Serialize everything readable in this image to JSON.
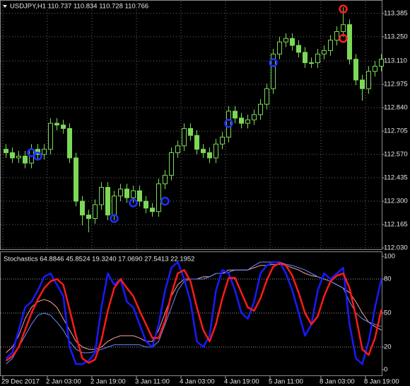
{
  "chart_data": [
    {
      "type": "candlestick",
      "title": "USDJPY,H1  110.737 110.834 110.728 110.766",
      "color": "#7cd957",
      "open": [
        112.6,
        112.58,
        112.55,
        112.56,
        112.52,
        112.6,
        112.57,
        112.6,
        112.75,
        112.74,
        112.72,
        112.55,
        112.3,
        112.22,
        112.2,
        112.28,
        112.38,
        112.22,
        112.33,
        112.37,
        112.32,
        112.36,
        112.3,
        112.26,
        112.24,
        112.4,
        112.45,
        112.58,
        112.62,
        112.72,
        112.68,
        112.6,
        112.58,
        112.55,
        112.63,
        112.67,
        112.82,
        112.78,
        112.75,
        112.77,
        112.8,
        112.86,
        112.95,
        113.15,
        113.22,
        113.24,
        113.2,
        113.16,
        113.1,
        113.1,
        113.15,
        113.17,
        113.23,
        113.28,
        113.32,
        113.12,
        113.0,
        112.95,
        113.05,
        113.08
      ],
      "high": [
        112.63,
        112.61,
        112.59,
        112.59,
        112.63,
        112.63,
        112.63,
        112.78,
        112.78,
        112.77,
        112.75,
        112.58,
        112.33,
        112.25,
        112.31,
        112.41,
        112.41,
        112.36,
        112.4,
        112.4,
        112.39,
        112.39,
        112.33,
        112.29,
        112.43,
        112.48,
        112.61,
        112.65,
        112.75,
        112.75,
        112.71,
        112.63,
        112.61,
        112.66,
        112.7,
        112.85,
        112.85,
        112.81,
        112.8,
        112.83,
        112.89,
        112.98,
        113.18,
        113.25,
        113.27,
        113.27,
        113.23,
        113.19,
        113.13,
        113.18,
        113.2,
        113.26,
        113.31,
        113.42,
        113.35,
        113.15,
        113.03,
        113.08,
        113.11,
        113.15
      ],
      "low": [
        112.55,
        112.52,
        112.52,
        112.49,
        112.49,
        112.54,
        112.54,
        112.57,
        112.71,
        112.69,
        112.52,
        112.27,
        112.16,
        112.12,
        112.17,
        112.25,
        112.19,
        112.19,
        112.3,
        112.29,
        112.29,
        112.27,
        112.23,
        112.21,
        112.21,
        112.37,
        112.42,
        112.55,
        112.59,
        112.65,
        112.57,
        112.55,
        112.52,
        112.52,
        112.6,
        112.64,
        112.75,
        112.72,
        112.72,
        112.74,
        112.77,
        112.83,
        112.92,
        113.12,
        113.19,
        113.17,
        113.13,
        113.07,
        113.07,
        113.07,
        113.12,
        113.14,
        113.2,
        113.25,
        113.09,
        112.97,
        112.88,
        112.92,
        113.02,
        113.05
      ],
      "close": [
        112.58,
        112.55,
        112.56,
        112.52,
        112.6,
        112.57,
        112.6,
        112.75,
        112.74,
        112.72,
        112.55,
        112.3,
        112.22,
        112.2,
        112.28,
        112.38,
        112.22,
        112.33,
        112.37,
        112.32,
        112.36,
        112.3,
        112.26,
        112.24,
        112.4,
        112.45,
        112.58,
        112.62,
        112.72,
        112.68,
        112.6,
        112.58,
        112.55,
        112.63,
        112.67,
        112.82,
        112.78,
        112.75,
        112.77,
        112.8,
        112.86,
        112.95,
        113.15,
        113.22,
        113.24,
        113.2,
        113.16,
        113.1,
        113.1,
        113.15,
        113.17,
        113.23,
        113.28,
        113.32,
        113.12,
        113.0,
        112.95,
        113.05,
        113.08,
        113.12
      ],
      "signals": [
        {
          "color": "#2030ff",
          "index": [
            4,
            5,
            17,
            20,
            25,
            35,
            42
          ],
          "values": [
            112.58,
            112.56,
            112.2,
            112.29,
            112.3,
            112.75,
            113.1
          ]
        },
        {
          "color": "#ff2020",
          "index": [
            53,
            53
          ],
          "values": [
            113.41,
            113.24
          ]
        }
      ],
      "ylim": [
        112.022,
        113.454
      ],
      "yticks": [
        113.385,
        {
          "value": 113.25,
          "label": "113.250"
        },
        {
          "value": 113.11,
          "label": "113.110"
        },
        112.975,
        {
          "value": 112.84,
          "label": "112.840"
        },
        112.705,
        {
          "value": 112.57,
          "label": "112.570"
        },
        112.435,
        {
          "value": 112.3,
          "label": "112.300"
        },
        112.165,
        {
          "value": 112.03,
          "label": "112.030"
        }
      ],
      "grid": true
    },
    {
      "type": "line",
      "title": "Stochastics 64.8846 45.8524 19.3240 17.0690 27.5413 22.1952",
      "categories": [
        "29 Dec 2017",
        null,
        null,
        null,
        null,
        null,
        null,
        "2 Jan 03:00",
        null,
        null,
        null,
        null,
        null,
        null,
        "2 Jan 19:00",
        null,
        null,
        null,
        null,
        null,
        null,
        "3 Jan 11:00",
        null,
        null,
        null,
        null,
        null,
        null,
        "4 Jan 03:00",
        null,
        null,
        null,
        null,
        null,
        null,
        "4 Jan 19:00",
        null,
        null,
        null,
        null,
        null,
        null,
        "5 Jan 11:00",
        null,
        null,
        null,
        null,
        null,
        null,
        null,
        "8 Jan 03:00",
        null,
        null,
        null,
        null,
        null,
        null,
        "8 Jan 19:00",
        null,
        null
      ],
      "series": [
        {
          "color": "#ffa0a0",
          "width": 1,
          "values": [
            15,
            20,
            30,
            45,
            55,
            60,
            62,
            60,
            55,
            45,
            35,
            25,
            20,
            18,
            18,
            20,
            25,
            28,
            30,
            30,
            30,
            28,
            25,
            25,
            35,
            50,
            65,
            75,
            80,
            80,
            80,
            82,
            82,
            85,
            85,
            88,
            88,
            88,
            88,
            90,
            92,
            92,
            93,
            93,
            92,
            90,
            88,
            85,
            83,
            82,
            80,
            78,
            75,
            72,
            68,
            60,
            50,
            42,
            38,
            35
          ]
        },
        {
          "color": "#6a8cff",
          "width": 1,
          "values": [
            5,
            10,
            20,
            30,
            40,
            48,
            50,
            48,
            42,
            35,
            25,
            18,
            15,
            15,
            16,
            18,
            20,
            22,
            22,
            22,
            22,
            22,
            20,
            20,
            25,
            40,
            55,
            70,
            78,
            80,
            80,
            80,
            82,
            85,
            85,
            86,
            88,
            88,
            88,
            92,
            95,
            95,
            95,
            95,
            93,
            92,
            90,
            88,
            85,
            82,
            80,
            78,
            75,
            72,
            60,
            50,
            45,
            42,
            40,
            38
          ]
        },
        {
          "color": "#1a1aff",
          "width": 2.5,
          "values": [
            10,
            15,
            35,
            55,
            60,
            70,
            82,
            85,
            75,
            65,
            20,
            5,
            5,
            8,
            15,
            55,
            85,
            75,
            80,
            60,
            55,
            40,
            25,
            20,
            40,
            70,
            90,
            95,
            80,
            60,
            25,
            20,
            30,
            70,
            88,
            85,
            70,
            50,
            45,
            60,
            85,
            92,
            95,
            95,
            85,
            70,
            50,
            30,
            40,
            70,
            85,
            80,
            85,
            90,
            40,
            10,
            5,
            25,
            55,
            80
          ]
        },
        {
          "color": "#ff1a1a",
          "width": 2.5,
          "values": [
            8,
            12,
            20,
            35,
            50,
            62,
            72,
            78,
            80,
            75,
            53,
            30,
            10,
            6,
            9,
            26,
            52,
            72,
            80,
            72,
            65,
            52,
            40,
            28,
            28,
            43,
            67,
            85,
            88,
            78,
            55,
            35,
            25,
            40,
            63,
            81,
            81,
            68,
            55,
            52,
            63,
            79,
            91,
            94,
            92,
            83,
            68,
            50,
            40,
            47,
            65,
            78,
            83,
            85,
            72,
            47,
            18,
            13,
            28,
            53
          ]
        }
      ],
      "levels": [
        80,
        50,
        20
      ],
      "ylim": [
        -5,
        103.75
      ],
      "yticks": [
        100,
        80,
        50,
        20,
        0
      ]
    }
  ]
}
